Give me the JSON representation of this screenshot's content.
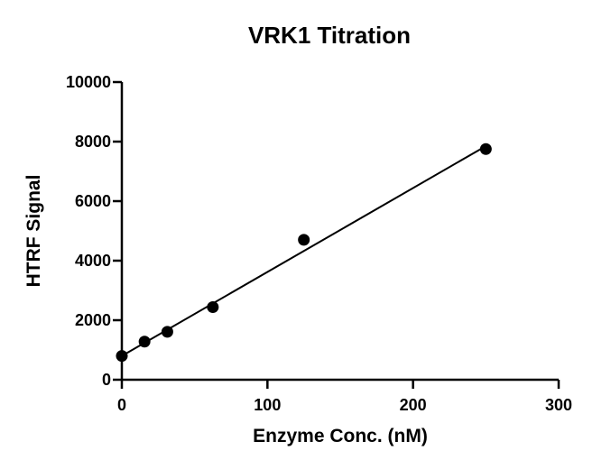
{
  "chart_data": {
    "type": "scatter",
    "title": "VRK1 Titration",
    "xlabel": "Enzyme Conc. (nM)",
    "ylabel": "HTRF Signal",
    "xlim": [
      0,
      300
    ],
    "ylim": [
      0,
      10000
    ],
    "xticks": [
      0,
      100,
      200,
      300
    ],
    "yticks": [
      0,
      2000,
      4000,
      6000,
      8000,
      10000
    ],
    "grid": false,
    "legend": "none",
    "series": [
      {
        "points": [
          {
            "x": 0,
            "y": 800
          },
          {
            "x": 15.6,
            "y": 1280
          },
          {
            "x": 31.25,
            "y": 1610
          },
          {
            "x": 62.5,
            "y": 2440
          },
          {
            "x": 125,
            "y": 4700
          },
          {
            "x": 250,
            "y": 7750
          }
        ],
        "fit_line": {
          "type": "linear",
          "start": {
            "x": 0,
            "y": 800
          },
          "end": {
            "x": 250,
            "y": 7850
          }
        }
      }
    ],
    "colors": {
      "marker": "#000000",
      "line": "#000000",
      "axis": "#000000"
    }
  }
}
